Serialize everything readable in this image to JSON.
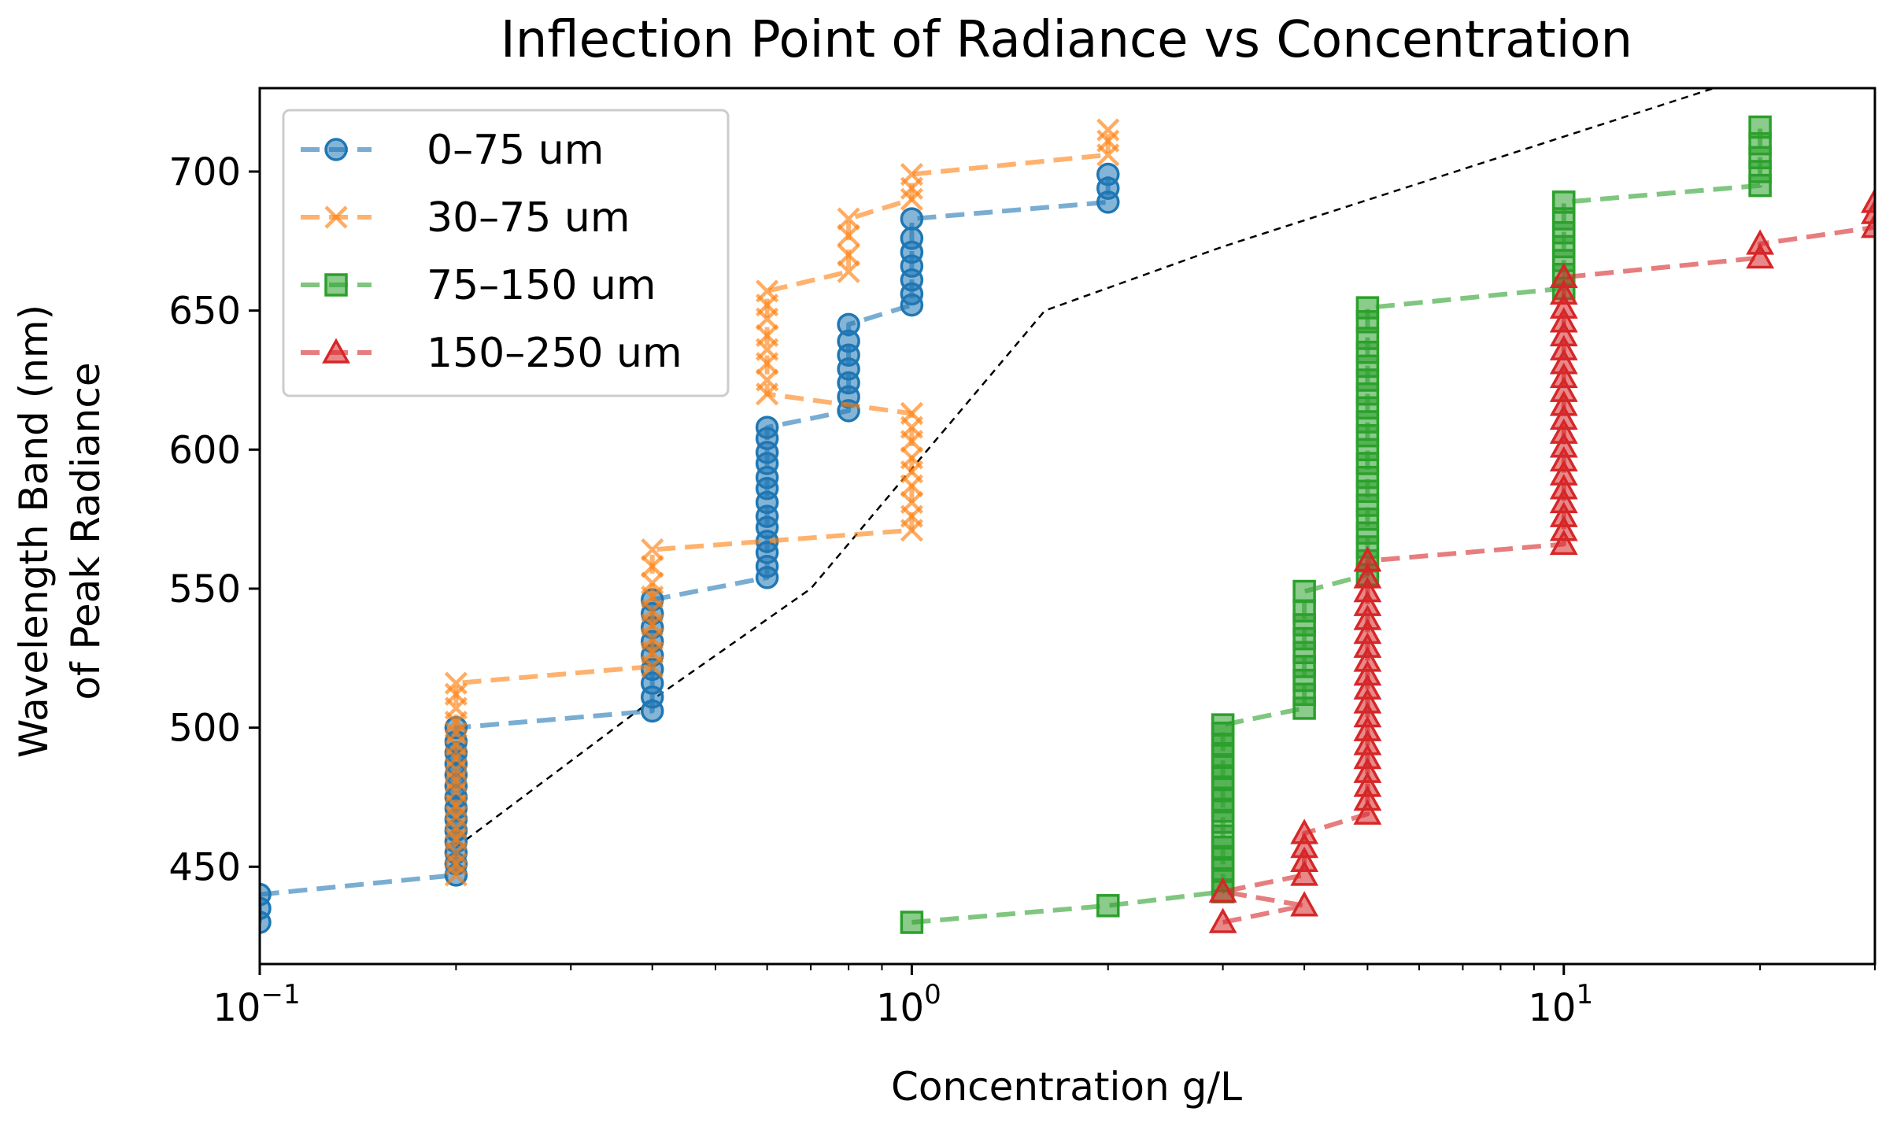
{
  "chart_data": {
    "type": "line",
    "title": "Inflection Point of Radiance vs Concentration",
    "xlabel": "Concentration g/L",
    "ylabel": [
      "Wavelength Band (nm)",
      "of Peak Radiance"
    ],
    "xscale": "log",
    "xlim": [
      0.1,
      30
    ],
    "ylim": [
      415,
      730
    ],
    "yticks": [
      450,
      500,
      550,
      600,
      650,
      700
    ],
    "xticks": [
      {
        "value": 0.1,
        "base": "10",
        "exp": "−1"
      },
      {
        "value": 1,
        "base": "10",
        "exp": "0"
      },
      {
        "value": 10,
        "base": "10",
        "exp": "1"
      }
    ],
    "grid": false,
    "legend": {
      "location": "upper-left"
    },
    "series": [
      {
        "name": "0–75 um",
        "color": "#1f77b4",
        "marker": "circle",
        "points": [
          [
            0.1,
            430
          ],
          [
            0.1,
            435
          ],
          [
            0.1,
            440
          ],
          [
            0.2,
            447
          ],
          [
            0.2,
            451
          ],
          [
            0.2,
            455
          ],
          [
            0.2,
            459
          ],
          [
            0.2,
            463
          ],
          [
            0.2,
            467
          ],
          [
            0.2,
            471
          ],
          [
            0.2,
            475
          ],
          [
            0.2,
            479
          ],
          [
            0.2,
            483
          ],
          [
            0.2,
            487
          ],
          [
            0.2,
            491
          ],
          [
            0.2,
            495
          ],
          [
            0.2,
            500
          ],
          [
            0.4,
            506
          ],
          [
            0.4,
            511
          ],
          [
            0.4,
            516
          ],
          [
            0.4,
            521
          ],
          [
            0.4,
            526
          ],
          [
            0.4,
            531
          ],
          [
            0.4,
            536
          ],
          [
            0.4,
            541
          ],
          [
            0.4,
            546
          ],
          [
            0.6,
            554
          ],
          [
            0.6,
            558
          ],
          [
            0.6,
            563
          ],
          [
            0.6,
            567
          ],
          [
            0.6,
            572
          ],
          [
            0.6,
            576
          ],
          [
            0.6,
            581
          ],
          [
            0.6,
            586
          ],
          [
            0.6,
            590
          ],
          [
            0.6,
            595
          ],
          [
            0.6,
            599
          ],
          [
            0.6,
            604
          ],
          [
            0.6,
            608
          ],
          [
            0.8,
            614
          ],
          [
            0.8,
            619
          ],
          [
            0.8,
            624
          ],
          [
            0.8,
            629
          ],
          [
            0.8,
            634
          ],
          [
            0.8,
            639
          ],
          [
            0.8,
            645
          ],
          [
            1.0,
            652
          ],
          [
            1.0,
            656
          ],
          [
            1.0,
            661
          ],
          [
            1.0,
            666
          ],
          [
            1.0,
            671
          ],
          [
            1.0,
            676
          ],
          [
            1.0,
            683
          ],
          [
            2.0,
            689
          ],
          [
            2.0,
            694
          ],
          [
            2.0,
            699
          ]
        ]
      },
      {
        "name": "30–75 um",
        "color": "#ff7f0e",
        "marker": "x",
        "points": [
          [
            0.2,
            447
          ],
          [
            0.2,
            451
          ],
          [
            0.2,
            455
          ],
          [
            0.2,
            460
          ],
          [
            0.2,
            464
          ],
          [
            0.2,
            468
          ],
          [
            0.2,
            472
          ],
          [
            0.2,
            477
          ],
          [
            0.2,
            481
          ],
          [
            0.2,
            485
          ],
          [
            0.2,
            489
          ],
          [
            0.2,
            494
          ],
          [
            0.2,
            498
          ],
          [
            0.2,
            502
          ],
          [
            0.2,
            507
          ],
          [
            0.2,
            512
          ],
          [
            0.2,
            516
          ],
          [
            0.4,
            522
          ],
          [
            0.4,
            527
          ],
          [
            0.4,
            532
          ],
          [
            0.4,
            537
          ],
          [
            0.4,
            542
          ],
          [
            0.4,
            547
          ],
          [
            0.4,
            552
          ],
          [
            0.4,
            558
          ],
          [
            0.4,
            564
          ],
          [
            1.0,
            571
          ],
          [
            1.0,
            576
          ],
          [
            1.0,
            581
          ],
          [
            1.0,
            587
          ],
          [
            1.0,
            592
          ],
          [
            1.0,
            597
          ],
          [
            1.0,
            603
          ],
          [
            1.0,
            608
          ],
          [
            1.0,
            613
          ],
          [
            0.6,
            620
          ],
          [
            0.6,
            625
          ],
          [
            0.6,
            631
          ],
          [
            0.6,
            636
          ],
          [
            0.6,
            641
          ],
          [
            0.6,
            647
          ],
          [
            0.6,
            652
          ],
          [
            0.6,
            657
          ],
          [
            0.8,
            664
          ],
          [
            0.8,
            670
          ],
          [
            0.8,
            677
          ],
          [
            0.8,
            683
          ],
          [
            1.0,
            690
          ],
          [
            1.0,
            694
          ],
          [
            1.0,
            699
          ],
          [
            2.0,
            706
          ],
          [
            2.0,
            711
          ],
          [
            2.0,
            715
          ]
        ]
      },
      {
        "name": "75–150 um",
        "color": "#2ca02c",
        "marker": "square",
        "points": [
          [
            1.0,
            430
          ],
          [
            2.0,
            436
          ],
          [
            3.0,
            441
          ],
          [
            3.0,
            445
          ],
          [
            3.0,
            449
          ],
          [
            3.0,
            453
          ],
          [
            3.0,
            457
          ],
          [
            3.0,
            461
          ],
          [
            3.0,
            466
          ],
          [
            3.0,
            470
          ],
          [
            3.0,
            474
          ],
          [
            3.0,
            478
          ],
          [
            3.0,
            482
          ],
          [
            3.0,
            486
          ],
          [
            3.0,
            490
          ],
          [
            3.0,
            494
          ],
          [
            3.0,
            498
          ],
          [
            3.0,
            501
          ],
          [
            4.0,
            507
          ],
          [
            4.0,
            512
          ],
          [
            4.0,
            517
          ],
          [
            4.0,
            522
          ],
          [
            4.0,
            527
          ],
          [
            4.0,
            532
          ],
          [
            4.0,
            537
          ],
          [
            4.0,
            542
          ],
          [
            4.0,
            549
          ],
          [
            5.0,
            555
          ],
          [
            5.0,
            560
          ],
          [
            5.0,
            565
          ],
          [
            5.0,
            570
          ],
          [
            5.0,
            575
          ],
          [
            5.0,
            580
          ],
          [
            5.0,
            585
          ],
          [
            5.0,
            590
          ],
          [
            5.0,
            595
          ],
          [
            5.0,
            600
          ],
          [
            5.0,
            605
          ],
          [
            5.0,
            610
          ],
          [
            5.0,
            615
          ],
          [
            5.0,
            620
          ],
          [
            5.0,
            625
          ],
          [
            5.0,
            630
          ],
          [
            5.0,
            635
          ],
          [
            5.0,
            640
          ],
          [
            5.0,
            646
          ],
          [
            5.0,
            651
          ],
          [
            10.0,
            658
          ],
          [
            10.0,
            663
          ],
          [
            10.0,
            668
          ],
          [
            10.0,
            673
          ],
          [
            10.0,
            678
          ],
          [
            10.0,
            683
          ],
          [
            10.0,
            689
          ],
          [
            20.0,
            695
          ],
          [
            20.0,
            700
          ],
          [
            20.0,
            705
          ],
          [
            20.0,
            710
          ],
          [
            20.0,
            716
          ]
        ]
      },
      {
        "name": "150–250 um",
        "color": "#d62728",
        "marker": "triangle",
        "points": [
          [
            3.0,
            430
          ],
          [
            4.0,
            436
          ],
          [
            3.0,
            441
          ],
          [
            4.0,
            447
          ],
          [
            4.0,
            452
          ],
          [
            4.0,
            457
          ],
          [
            4.0,
            462
          ],
          [
            5.0,
            469
          ],
          [
            5.0,
            474
          ],
          [
            5.0,
            479
          ],
          [
            5.0,
            484
          ],
          [
            5.0,
            489
          ],
          [
            5.0,
            494
          ],
          [
            5.0,
            499
          ],
          [
            5.0,
            504
          ],
          [
            5.0,
            509
          ],
          [
            5.0,
            514
          ],
          [
            5.0,
            519
          ],
          [
            5.0,
            524
          ],
          [
            5.0,
            529
          ],
          [
            5.0,
            534
          ],
          [
            5.0,
            539
          ],
          [
            5.0,
            544
          ],
          [
            5.0,
            549
          ],
          [
            5.0,
            554
          ],
          [
            5.0,
            560
          ],
          [
            10.0,
            566
          ],
          [
            10.0,
            571
          ],
          [
            10.0,
            576
          ],
          [
            10.0,
            581
          ],
          [
            10.0,
            586
          ],
          [
            10.0,
            591
          ],
          [
            10.0,
            596
          ],
          [
            10.0,
            601
          ],
          [
            10.0,
            606
          ],
          [
            10.0,
            611
          ],
          [
            10.0,
            616
          ],
          [
            10.0,
            621
          ],
          [
            10.0,
            626
          ],
          [
            10.0,
            631
          ],
          [
            10.0,
            636
          ],
          [
            10.0,
            641
          ],
          [
            10.0,
            646
          ],
          [
            10.0,
            651
          ],
          [
            10.0,
            656
          ],
          [
            10.0,
            662
          ],
          [
            20.0,
            669
          ],
          [
            20.0,
            674
          ],
          [
            30.0,
            680
          ],
          [
            30.0,
            685
          ],
          [
            30.0,
            689
          ]
        ]
      }
    ],
    "reference_line": {
      "style": "black-dashed",
      "points": [
        [
          0.2,
          457
        ],
        [
          0.4,
          510
        ],
        [
          0.7,
          550
        ],
        [
          1.6,
          650
        ],
        [
          3.0,
          673
        ],
        [
          17.0,
          730
        ]
      ]
    }
  }
}
